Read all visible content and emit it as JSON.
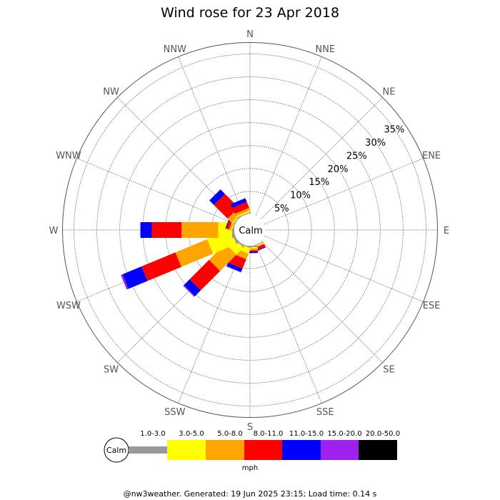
{
  "chart_data": {
    "type": "wind-rose",
    "title": "Wind rose for 23 Apr 2018",
    "directions": [
      "N",
      "NNE",
      "NE",
      "ENE",
      "E",
      "ESE",
      "SE",
      "SSE",
      "S",
      "SSW",
      "SW",
      "WSW",
      "W",
      "WNW",
      "NW",
      "NNW"
    ],
    "radial_axis": {
      "unit": "%",
      "ticks": [
        5,
        10,
        15,
        20,
        25,
        30,
        35
      ],
      "tick_labels": [
        "5%",
        "10%",
        "15%",
        "20%",
        "25%",
        "30%",
        "35%"
      ],
      "max": 37.5
    },
    "center_label": "Calm",
    "speed_bins": [
      {
        "label": "1.0-3.0",
        "color": "#999999"
      },
      {
        "label": "3.0-5.0",
        "color": "#ffff00"
      },
      {
        "label": "5.0-8.0",
        "color": "#ffa500"
      },
      {
        "label": "8.0-11.0",
        "color": "#ff0000"
      },
      {
        "label": "11.0-15.0",
        "color": "#0000ff"
      },
      {
        "label": "15.0-20.0",
        "color": "#a020f0"
      },
      {
        "label": "20.0-50.0",
        "color": "#000000"
      }
    ],
    "legend_unit": "mph",
    "legend_calm": "Calm",
    "series_cumulative_percent": {
      "N": [
        0,
        0,
        0,
        0,
        0,
        0,
        0
      ],
      "NNE": [
        0,
        0,
        0,
        0,
        0,
        0,
        0
      ],
      "NE": [
        0,
        0,
        0,
        0,
        0,
        0,
        0
      ],
      "ENE": [
        0,
        0,
        0,
        0,
        0,
        0,
        0
      ],
      "E": [
        0,
        0,
        0,
        0,
        0,
        0,
        0
      ],
      "ESE": [
        0,
        0,
        0,
        0,
        0,
        0,
        0
      ],
      "SE": [
        0,
        0,
        0,
        0,
        0,
        0,
        0
      ],
      "SSE": [
        0.2,
        0.4,
        0.6,
        1.2,
        1.4,
        1.4,
        1.4
      ],
      "S": [
        0.3,
        0.6,
        1.0,
        1.3,
        1.6,
        1.6,
        1.6
      ],
      "SSW": [
        0.2,
        1.5,
        2.8,
        5.0,
        5.8,
        5.9,
        5.9
      ],
      "SW": [
        0.3,
        2.5,
        7.5,
        13.5,
        15.3,
        15.5,
        15.5
      ],
      "WSW": [
        0.5,
        6.0,
        13.5,
        21.5,
        26.0,
        26.4,
        26.4
      ],
      "W": [
        0.5,
        3.5,
        11.5,
        18.0,
        20.5,
        20.5,
        20.5
      ],
      "WNW": [
        0.2,
        0.4,
        0.9,
        1.5,
        1.7,
        1.7,
        1.7
      ],
      "NW": [
        0.2,
        0.5,
        1.8,
        6.0,
        7.4,
        7.4,
        7.4
      ],
      "NNW": [
        0.2,
        0.5,
        1.1,
        2.5,
        3.4,
        3.4,
        3.4
      ]
    }
  },
  "footer": "@nw3weather. Generated: 19 Jun 2025 23:15; Load time: 0.14 s"
}
